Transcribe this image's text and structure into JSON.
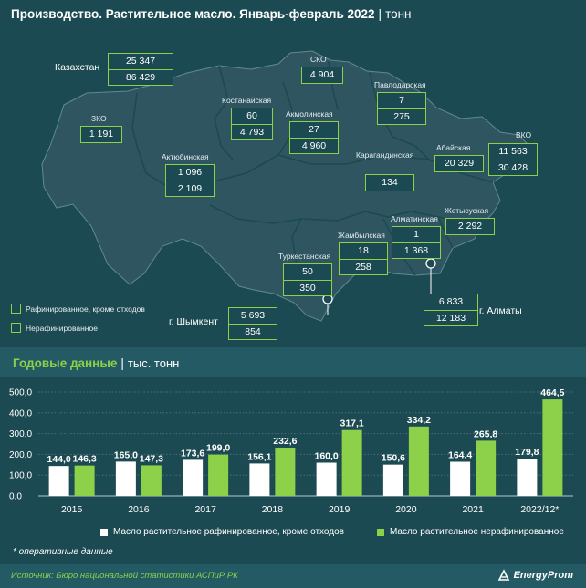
{
  "title": {
    "main": "Производство. Растительное масло. Январь-февраль 2022",
    "unit": "тонн"
  },
  "colors": {
    "background": "#1c4a52",
    "map_fill": "#2e5560",
    "accent": "#8dd04a",
    "refined": "#ffffff",
    "unrefined": "#8dd04a"
  },
  "map": {
    "kazakhstan": {
      "label": "Казахстан",
      "refined": "25 347",
      "unrefined": "86 429"
    },
    "regions": [
      {
        "id": "sko",
        "label": "СКО",
        "refined": "",
        "unrefined": "4 904"
      },
      {
        "id": "pavlodar",
        "label": "Павлодарская",
        "refined": "7",
        "unrefined": "275"
      },
      {
        "id": "kostanay",
        "label": "Костанайская",
        "refined": "60",
        "unrefined": "4 793"
      },
      {
        "id": "akmola",
        "label": "Акмолинская",
        "refined": "27",
        "unrefined": "4 960"
      },
      {
        "id": "zko",
        "label": "ЗКО",
        "refined": "",
        "unrefined": "1 191"
      },
      {
        "id": "aktobe",
        "label": "Актюбинская",
        "refined": "1 096",
        "unrefined": "2 109"
      },
      {
        "id": "karaganda",
        "label": "Карагандинская",
        "refined": "",
        "unrefined": "134"
      },
      {
        "id": "abay",
        "label": "Абайская",
        "refined": "",
        "unrefined": "20 329"
      },
      {
        "id": "vko",
        "label": "ВКО",
        "refined": "11 563",
        "unrefined": "30 428"
      },
      {
        "id": "zhetysu",
        "label": "Жетысуская",
        "refined": "",
        "unrefined": "2 292"
      },
      {
        "id": "almaty_obl",
        "label": "Алматинская",
        "refined": "1",
        "unrefined": "1 368"
      },
      {
        "id": "zhambyl",
        "label": "Жамбылская",
        "refined": "18",
        "unrefined": "258"
      },
      {
        "id": "turkestan",
        "label": "Туркестанская",
        "refined": "50",
        "unrefined": "350"
      },
      {
        "id": "shymkent",
        "label": "г. Шымкент",
        "refined": "5 693",
        "unrefined": "854"
      },
      {
        "id": "almaty_city",
        "label": "г. Алматы",
        "refined": "6 833",
        "unrefined": "12 183"
      }
    ],
    "legend": {
      "refined": "Рафинированное, кроме отходов",
      "unrefined": "Нерафинированное"
    }
  },
  "annual": {
    "title": "Годовые данные",
    "unit": "тыс. тонн"
  },
  "chart_data": {
    "type": "bar",
    "categories": [
      "2015",
      "2016",
      "2017",
      "2018",
      "2019",
      "2020",
      "2021",
      "2022/12*"
    ],
    "series": [
      {
        "name": "Масло растительное рафинированное, кроме отходов",
        "values": [
          144.0,
          165.0,
          173.6,
          156.1,
          160.0,
          150.6,
          164.4,
          179.8
        ]
      },
      {
        "name": "Масло растительное нерафинированное",
        "values": [
          146.3,
          147.3,
          199.0,
          232.6,
          317.1,
          334.2,
          265.8,
          464.5
        ]
      }
    ],
    "data_labels": {
      "refined": [
        "144,0",
        "165,0",
        "173,6",
        "156,1",
        "160,0",
        "150,6",
        "164,4",
        "179,8"
      ],
      "unrefined": [
        "146,3",
        "147,3",
        "199,0",
        "232,6",
        "317,1",
        "334,2",
        "265,8",
        "464,5"
      ]
    },
    "y_ticks": [
      "0,0",
      "100,0",
      "200,0",
      "300,0",
      "400,0",
      "500,0"
    ],
    "ylim": [
      0,
      500
    ],
    "grid": true,
    "legend_position": "bottom"
  },
  "footnote": "* оперативные данные",
  "footer": {
    "source": "Источник: Бюро национальной статистики АСПиР РК",
    "logo": "EnergyProm"
  }
}
